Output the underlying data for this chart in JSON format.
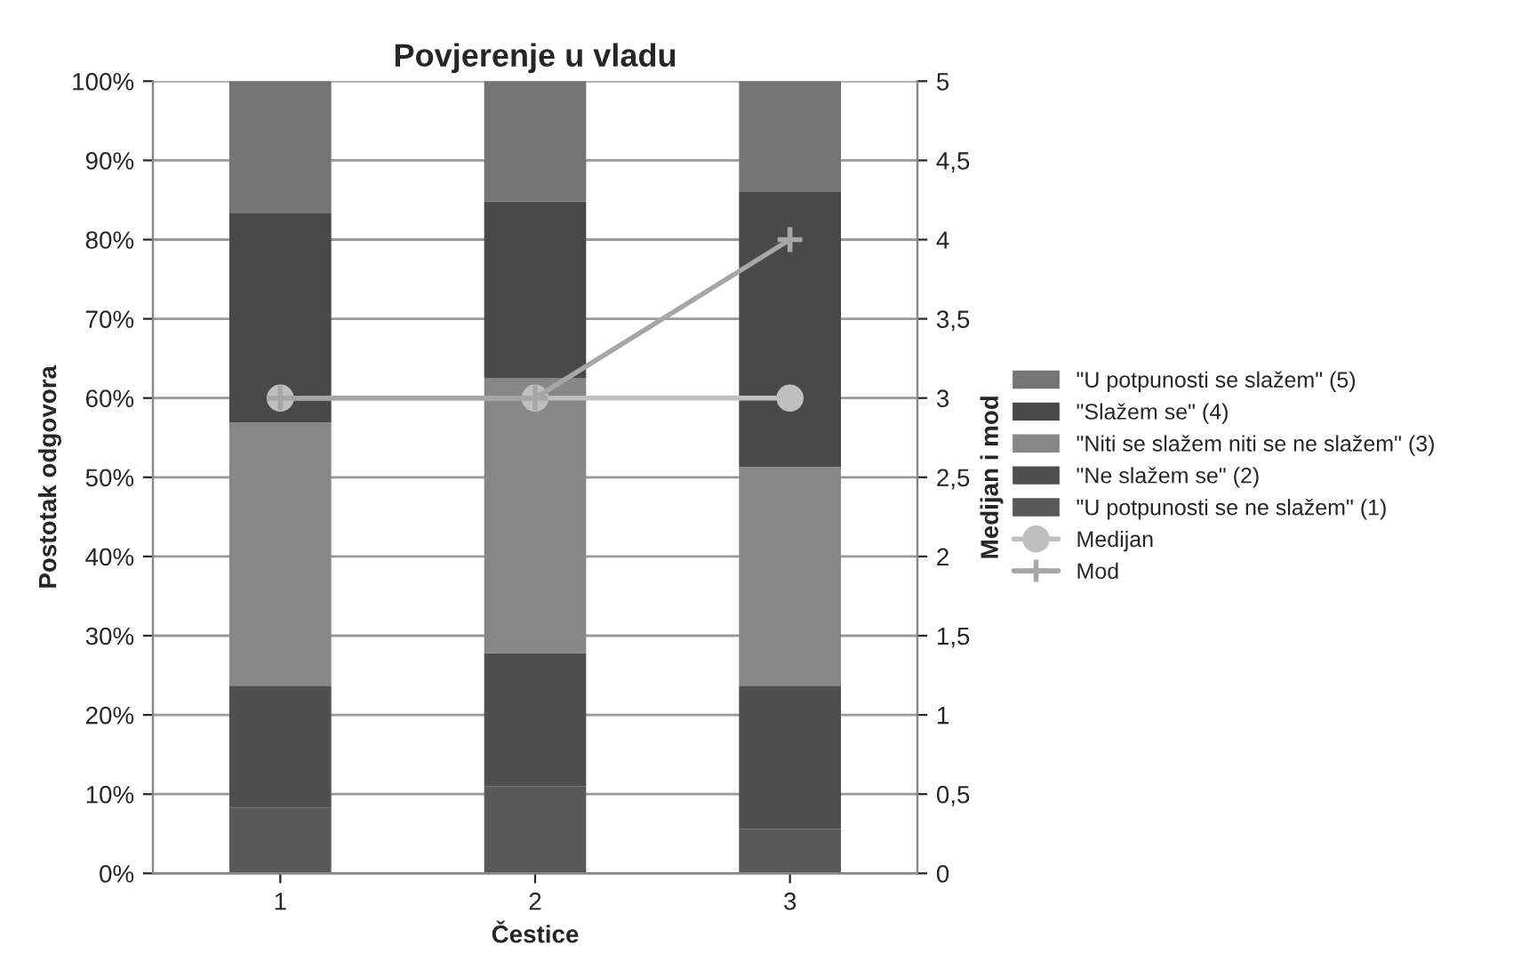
{
  "chart_data": {
    "type": "bar",
    "stacked": true,
    "title": "Povjerenje u vladu",
    "xlabel": "Čestice",
    "ylabel": "Postotak odgovora",
    "y2label": "Medijan i mod",
    "categories": [
      "1",
      "2",
      "3"
    ],
    "series": [
      {
        "name": "\"U potpunosti se ne slažem\" (1)",
        "color": "#595959",
        "values": [
          8.3,
          11.0,
          5.6
        ]
      },
      {
        "name": "\"Ne slažem se\" (2)",
        "color": "#4f4f4f",
        "values": [
          15.4,
          16.8,
          18.1
        ]
      },
      {
        "name": "\"Niti se slažem niti se ne slažem\" (3)",
        "color": "#878787",
        "values": [
          33.2,
          34.7,
          27.6
        ]
      },
      {
        "name": "\"Slažem se\" (4)",
        "color": "#494949",
        "values": [
          26.4,
          22.3,
          34.8
        ]
      },
      {
        "name": "\"U potpunosti se slažem\" (5)",
        "color": "#747474",
        "values": [
          16.7,
          15.2,
          13.9
        ]
      },
      {
        "name": "Medijan",
        "type": "line",
        "axis": "y2",
        "marker": "circle",
        "color": "#bfbfbf",
        "values": [
          3,
          3,
          3
        ]
      },
      {
        "name": "Mod",
        "type": "line",
        "axis": "y2",
        "marker": "cross",
        "color": "#a6a6a6",
        "values": [
          3,
          3,
          4
        ]
      }
    ],
    "ylim": [
      0,
      100
    ],
    "yticks": [
      {
        "value": 0,
        "label": "0%"
      },
      {
        "value": 10,
        "label": "10%"
      },
      {
        "value": 20,
        "label": "20%"
      },
      {
        "value": 30,
        "label": "30%"
      },
      {
        "value": 40,
        "label": "40%"
      },
      {
        "value": 50,
        "label": "50%"
      },
      {
        "value": 60,
        "label": "60%"
      },
      {
        "value": 70,
        "label": "70%"
      },
      {
        "value": 80,
        "label": "80%"
      },
      {
        "value": 90,
        "label": "90%"
      },
      {
        "value": 100,
        "label": "100%"
      }
    ],
    "y2lim": [
      0,
      5
    ],
    "y2ticks": [
      0,
      {
        "value": 0.5,
        "label": "0,5"
      },
      1,
      {
        "value": 1.5,
        "label": "1,5"
      },
      2,
      {
        "value": 2.5,
        "label": "2,5"
      },
      3,
      {
        "value": 3.5,
        "label": "3,5"
      },
      4,
      {
        "value": 4.5,
        "label": "4,5"
      },
      5
    ],
    "grid": "y",
    "legend": "right"
  }
}
